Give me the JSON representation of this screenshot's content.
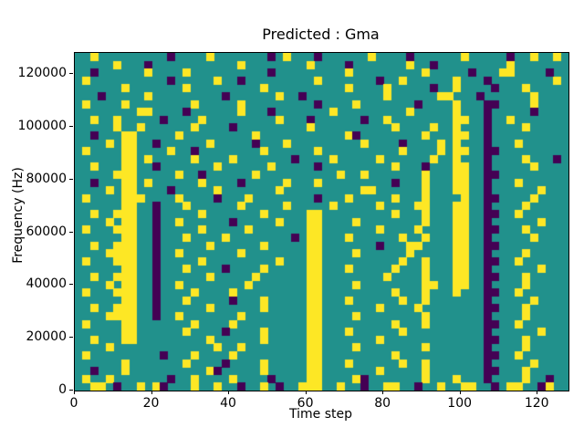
{
  "chart_data": {
    "type": "heatmap",
    "title": "Predicted : Gma",
    "xlabel": "Time step",
    "ylabel": "Frequency (Hz)",
    "xlim": [
      0,
      128
    ],
    "ylim": [
      0,
      128000
    ],
    "x_ticks": [
      0,
      20,
      40,
      60,
      80,
      100,
      120
    ],
    "y_ticks": [
      0,
      20000,
      40000,
      60000,
      80000,
      100000,
      120000
    ],
    "colormap": "viridis",
    "legend": "none",
    "colors": {
      "mid_value": "#21918c",
      "high_value": "#fde725",
      "low_value": "#440154",
      "spine": "#000000"
    },
    "value_encoding": {
      ".": "mid (teal)",
      "Y": "high (yellow)",
      "P": "low (purple)"
    },
    "grid": {
      "cols": 64,
      "rows": 43
    },
    "cells": [
      "..Y.........P....Y.......P.Y...P......Y....P......Y.....P..Y..Y",
      ".....Y...P...........Y........Y....P.......Y..P.........Y......",
      "..P......Y....Y..........P.........Y.........Y.....P...YY....P.",
      ".Y..........P.....Y..P.........Y.......P..Y......Y...P........Y",
      "......Y.......Y.........Y..........Y....Y.....P..Y....P...Y....",
      "...P.....Y.........P......Y..P..........Y......YY...P......Y...",
      ".Y....Y........Y.....Y.........P....Y.......P....Y...PP....Y...",
      "........YY....P......Y...P.......Y.........Y.....Y...P.....P...",
      "..Y..Y.....P....Y.........Y...P......P..Y........YY..P..Y......",
      ".....Y..Y......Y....P.........Y..........Y....Y..Y...P....Y....",
      "..P...YY.....Y.........Y...........YP........Y...YY..P.........",
      "....Y.YY..P......Y.....P...Y.........Y....P....Y.Y...P...Y.....",
      ".Y....YY....Y..P........Y......Y..........Y....Y.YY..PP........",
      "......YY.Y.....Y....Y.......P....Y.....Y......Y..Y...P....Y...P",
      "..Y...YY..P.......Y......Y.....P.........Y...P...YY..P.....Y...",
      ".....YYY.....Y..P......Y..........Y..Y.......Y...YY..PP........",
      "..P...YY.Y......Y....P.....Y...Y.........P...Y...YY..P...Y.....",
      "....Y.YY....P.....Y.......Y..........YY......Y...YY..P......Y..",
      ".Y....YYY....Y....P...Y........P...Y.....Y...Y....Y..PP....Y...",
      "......YY..P...Y......Y.....Y.....Y.....Y....YY...YY..P....Y....",
      "..Y..YYY..P.....Y.......Y.....YY.........Y...Y...YY..PP..Y.....",
      "....Y.YY..P..Y......P.....Y...YY....Y........Y...YY..P......Y..",
      ".Y...YYY..P.....Y.....Y.......YY.......Y....Y....YY..PP...Y....",
      "......YY..P...Y....Y........P.YY...Y......Y..Y...YY..P.....Y...",
      "..Y..YYY..P......Y......Y.....YY.......P...YY....YY..PP........",
      "....YYYY..P..Y.......Y........YY....Y......Y.....YY..P....Y....",
      ".Y...YYY..P.....Y.........Y...YY..........Y..Y...YY..PP..Y.....",
      "......YY..P...Y....P....Y.....YY...Y.....Y...Y...YY..P......Y..",
      "..Y..YYY..P......Y.....Y......YY........Y....Y...YY..PP...Y....",
      "....Y.YY..P..Y........Y.......YY....Y........YY..YY..P....Y....",
      ".Y...YYY..P....Y....Y.........YY.........Y...Y...Y...PP..Y.....",
      "......YY..P...Y.....P...Y.....YY...Y......Y..Y.......P.....Y...",
      "..Y..YYY..P......Y......Y.....YY.......Y....Y........PP...Y....",
      "....YYYY..P..Y.......Y........YY....Y........Y.......P....Y....",
      ".Y....YY.......Y....Y.........YY.........Y...Y.......PP..Y.....",
      "......YY......Y....P....Y.....YY...Y......Y..........P......Y..",
      "..Y...YY.........Y......Y.....YY.......Y.............PP...Y....",
      "....Y.............Y..Y........YY....Y........Y.......P....Y....",
      ".Y.........P...Y....Y.........YY.........Y...........PP..Y.....",
      "......Y.......Y....P....Y.....YY...Y......Y..Y.......P.....Y...",
      "..P...Y..........YP.....Y.....YY.......Y.....Y.......PP...Y....",
      ".Y..Y.......P..Y....Y....P....YY....YP.......Y...Y...P....Y..P.",
      "..YY.P..Y.YP...Y..Y..P..Y.P..YYY..Y..P..YY..P..Y..YY..P.YY..PY."
    ]
  }
}
